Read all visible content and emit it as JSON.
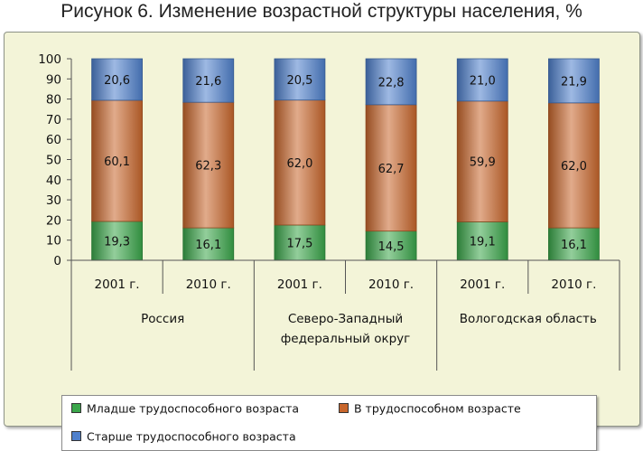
{
  "title": "Рисунок 6. Изменение возрастной структуры населения, %",
  "colors": {
    "panel_bg": "#f3f4d8",
    "young": "#3aa64a",
    "working": "#c8662c",
    "old": "#4f80cc"
  },
  "legend": {
    "items": [
      {
        "label": "Младше трудоспособного возраста",
        "color": "#3aa64a"
      },
      {
        "label": "В трудоспособном возрасте",
        "color": "#c8662c"
      },
      {
        "label": "Старше трудоспособного возраста",
        "color": "#4f80cc"
      }
    ]
  },
  "chart_data": {
    "type": "bar",
    "stacked": true,
    "ylim": [
      0,
      100
    ],
    "yticks": [
      0,
      10,
      20,
      30,
      40,
      50,
      60,
      70,
      80,
      90,
      100
    ],
    "categories": [
      "2001 г.",
      "2010 г.",
      "2001 г.",
      "2010 г.",
      "2001 г.",
      "2010 г."
    ],
    "groups": [
      {
        "label": [
          "Россия"
        ]
      },
      {
        "label": [
          "Северо-Западный",
          "федеральный округ"
        ]
      },
      {
        "label": [
          "Вологодская область"
        ]
      }
    ],
    "series": [
      {
        "name": "Младше трудоспособного возраста",
        "values": [
          19.3,
          16.1,
          17.5,
          14.5,
          19.1,
          16.1
        ],
        "labels": [
          "19,3",
          "16,1",
          "17,5",
          "14,5",
          "19,1",
          "16,1"
        ]
      },
      {
        "name": "В трудоспособном возрасте",
        "values": [
          60.1,
          62.3,
          62.0,
          62.7,
          59.9,
          62.0
        ],
        "labels": [
          "60,1",
          "62,3",
          "62,0",
          "62,7",
          "59,9",
          "62,0"
        ]
      },
      {
        "name": "Старше трудоспособного возраста",
        "values": [
          20.6,
          21.6,
          20.5,
          22.8,
          21.0,
          21.9
        ],
        "labels": [
          "20,6",
          "21,6",
          "20,5",
          "22,8",
          "21,0",
          "21,9"
        ]
      }
    ]
  }
}
